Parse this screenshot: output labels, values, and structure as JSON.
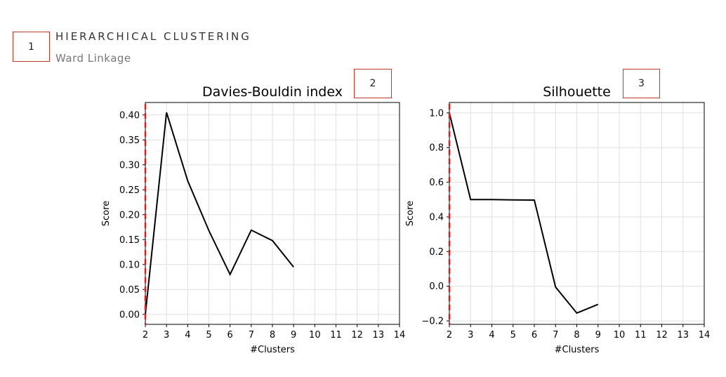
{
  "header": {
    "title": "HIERARCHICAL CLUSTERING",
    "subtitle": "Ward Linkage"
  },
  "callouts": [
    "1",
    "2",
    "3"
  ],
  "colors": {
    "line": "#000000",
    "marker_line": "#e31a1c",
    "grid": "#e0e0e0",
    "axis": "#000000"
  },
  "chart_data": [
    {
      "type": "line",
      "title": "Davies-Bouldin index",
      "xlabel": "#Clusters",
      "ylabel": "Score",
      "x": [
        2,
        3,
        4,
        5,
        6,
        7,
        8,
        9
      ],
      "values": [
        0.0,
        0.405,
        0.268,
        0.168,
        0.08,
        0.169,
        0.148,
        0.095
      ],
      "xlim": [
        2,
        14
      ],
      "ylim": [
        -0.02,
        0.425
      ],
      "xticks": [
        2,
        3,
        4,
        5,
        6,
        7,
        8,
        9,
        10,
        11,
        12,
        13,
        14
      ],
      "yticks": [
        0.0,
        0.05,
        0.1,
        0.15,
        0.2,
        0.25,
        0.3,
        0.35,
        0.4
      ],
      "ytick_labels": [
        "0.00",
        "0.05",
        "0.10",
        "0.15",
        "0.20",
        "0.25",
        "0.30",
        "0.35",
        "0.40"
      ],
      "vline_x": 2,
      "grid": true
    },
    {
      "type": "line",
      "title": "Silhouette",
      "xlabel": "#Clusters",
      "ylabel": "Score",
      "x": [
        2,
        3,
        4,
        5,
        6,
        7,
        8,
        9
      ],
      "values": [
        1.0,
        0.5,
        0.5,
        0.498,
        0.497,
        -0.005,
        -0.155,
        -0.105
      ],
      "xlim": [
        2,
        14
      ],
      "ylim": [
        -0.22,
        1.06
      ],
      "xticks": [
        2,
        3,
        4,
        5,
        6,
        7,
        8,
        9,
        10,
        11,
        12,
        13,
        14
      ],
      "yticks": [
        -0.2,
        0.0,
        0.2,
        0.4,
        0.6,
        0.8,
        1.0
      ],
      "ytick_labels": [
        "−0.2",
        "0.0",
        "0.2",
        "0.4",
        "0.6",
        "0.8",
        "1.0"
      ],
      "vline_x": 2,
      "grid": true
    }
  ]
}
